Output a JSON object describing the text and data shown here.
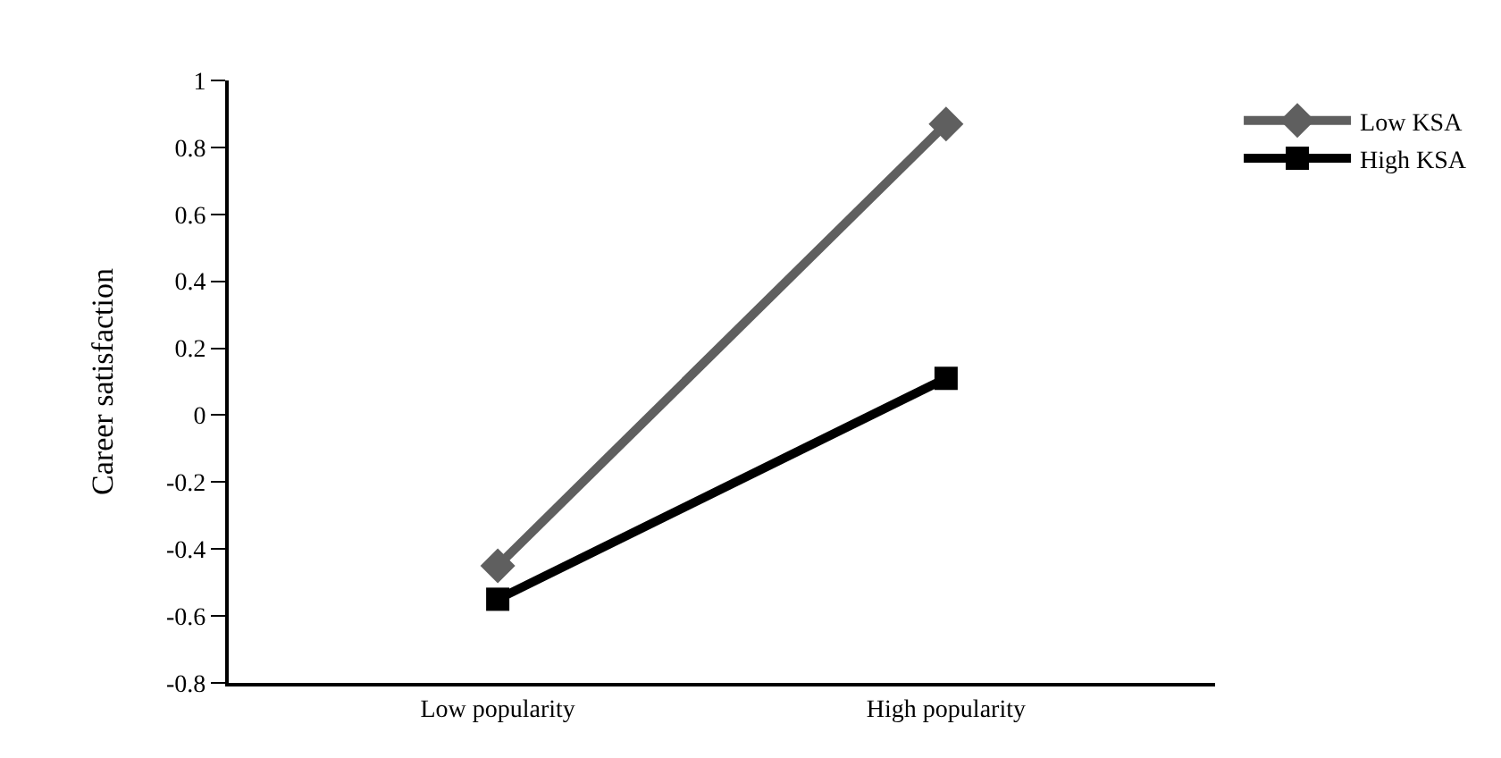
{
  "chart_data": {
    "type": "line",
    "ylabel": "Career satisfaction",
    "categories": [
      "Low popularity",
      "High popularity"
    ],
    "series": [
      {
        "name": "Low KSA",
        "color": "#5f5f5f",
        "values": [
          -0.45,
          0.87
        ],
        "marker": "diamond"
      },
      {
        "name": "High KSA",
        "color": "#000000",
        "values": [
          -0.55,
          0.11
        ],
        "marker": "square"
      }
    ],
    "ylim": [
      -0.8,
      1
    ],
    "yticks": [
      {
        "value": -0.8,
        "label": "-0.8"
      },
      {
        "value": -0.6,
        "label": "-0.6"
      },
      {
        "value": -0.4,
        "label": "-0.4"
      },
      {
        "value": -0.2,
        "label": "-0.2"
      },
      0,
      0.2,
      0.4,
      0.6,
      0.8,
      1
    ],
    "legend": "top right",
    "line_style": "solid"
  }
}
